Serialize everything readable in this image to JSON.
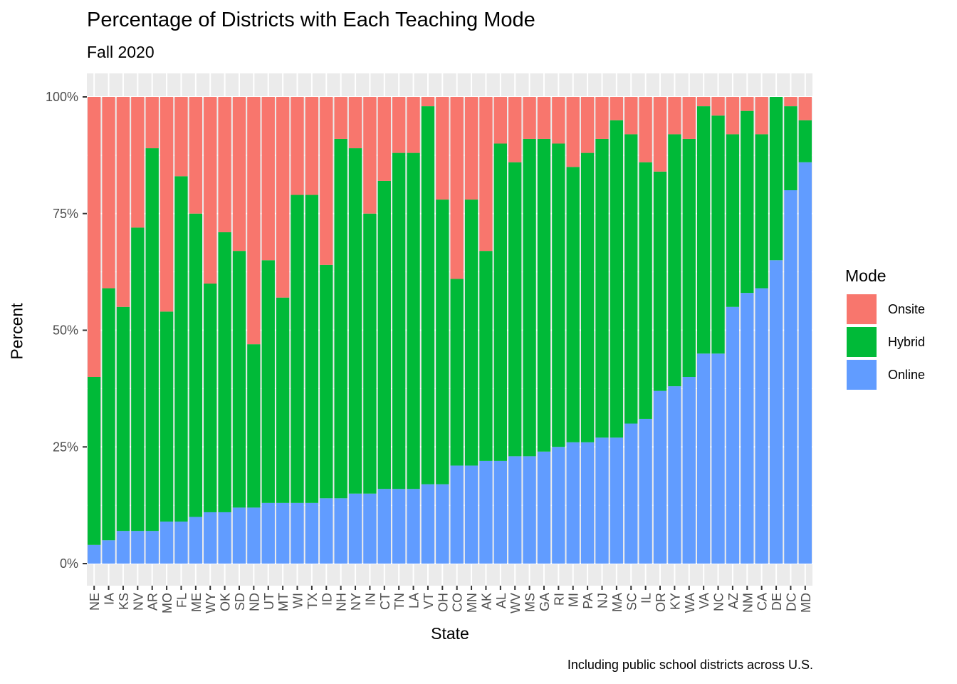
{
  "chart_data": {
    "type": "bar",
    "stacked": true,
    "title": "Percentage of Districts with Each Teaching Mode",
    "subtitle": "Fall 2020",
    "caption": "Including public school districts across U.S.",
    "xlabel": "State",
    "ylabel": "Percent",
    "ylim": [
      0,
      100
    ],
    "yticks": [
      "0%",
      "25%",
      "50%",
      "75%",
      "100%"
    ],
    "ytick_values": [
      0,
      25,
      50,
      75,
      100
    ],
    "legend_title": "Mode",
    "legend_placement": "right",
    "grid": true,
    "categories": [
      "NE",
      "IA",
      "KS",
      "NV",
      "AR",
      "MO",
      "FL",
      "ME",
      "WY",
      "OK",
      "SD",
      "ND",
      "UT",
      "MT",
      "WI",
      "TX",
      "ID",
      "NH",
      "NY",
      "IN",
      "CT",
      "TN",
      "LA",
      "VT",
      "OH",
      "CO",
      "MN",
      "AK",
      "AL",
      "WV",
      "MS",
      "GA",
      "RI",
      "MI",
      "PA",
      "NJ",
      "MA",
      "SC",
      "IL",
      "OR",
      "KY",
      "WA",
      "VA",
      "NC",
      "AZ",
      "NM",
      "CA",
      "DE",
      "DC",
      "MD"
    ],
    "series": [
      {
        "name": "Online",
        "color": "#619CFF",
        "values": [
          4,
          5,
          7,
          7,
          7,
          9,
          9,
          10,
          11,
          11,
          12,
          12,
          13,
          13,
          13,
          13,
          14,
          14,
          15,
          15,
          16,
          16,
          16,
          17,
          17,
          21,
          21,
          22,
          22,
          23,
          23,
          24,
          25,
          26,
          26,
          27,
          27,
          30,
          31,
          37,
          38,
          40,
          45,
          45,
          55,
          58,
          59,
          65,
          80,
          86
        ]
      },
      {
        "name": "Hybrid",
        "color": "#00BA38",
        "values": [
          36,
          54,
          48,
          65,
          82,
          45,
          74,
          65,
          49,
          60,
          55,
          35,
          52,
          44,
          66,
          66,
          50,
          77,
          74,
          60,
          66,
          72,
          72,
          81,
          61,
          40,
          57,
          45,
          68,
          63,
          68,
          67,
          65,
          59,
          62,
          64,
          68,
          62,
          55,
          47,
          54,
          51,
          53,
          51,
          37,
          39,
          33,
          35,
          18,
          9
        ]
      },
      {
        "name": "Onsite",
        "color": "#F8766D",
        "values": [
          60,
          41,
          45,
          28,
          11,
          46,
          17,
          25,
          40,
          29,
          33,
          53,
          35,
          43,
          21,
          21,
          36,
          9,
          11,
          25,
          18,
          12,
          12,
          2,
          22,
          39,
          22,
          33,
          10,
          14,
          9,
          9,
          10,
          15,
          12,
          9,
          5,
          8,
          14,
          16,
          8,
          9,
          2,
          4,
          8,
          3,
          8,
          0,
          2,
          5
        ]
      }
    ]
  }
}
